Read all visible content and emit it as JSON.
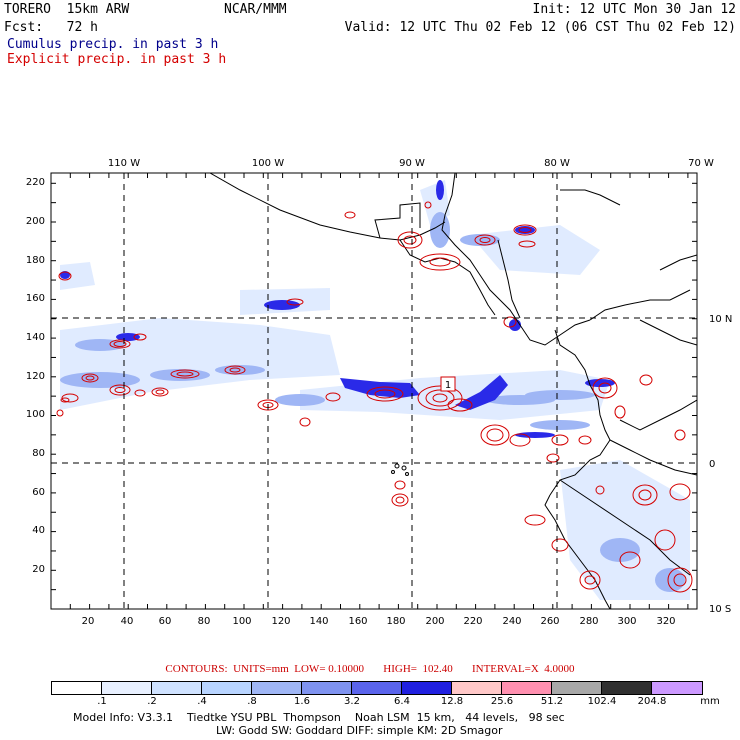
{
  "header": {
    "left1": "TORERO  15km ARW",
    "center1": "NCAR/MMM",
    "right1": "Init: 12 UTC Mon 30 Jan 12",
    "left2": "Fcst:   72 h",
    "right2": "Valid: 12 UTC Thu 02 Feb 12 (06 CST Thu 02 Feb 12)",
    "line3": "Cumulus precip. in past 3 h",
    "line4": "Explicit precip. in past 3 h",
    "color_blue": "#00008b",
    "color_red": "#d40000"
  },
  "map": {
    "top_lon_labels": [
      "110 W",
      "100 W",
      "90 W",
      "80 W",
      "70 W"
    ],
    "right_lat_labels": [
      "10 N",
      "0",
      "10 S"
    ],
    "x_ticks": [
      "20",
      "40",
      "60",
      "80",
      "100",
      "120",
      "140",
      "160",
      "180",
      "200",
      "220",
      "240",
      "260",
      "280",
      "300",
      "320"
    ],
    "y_ticks": [
      "220",
      "200",
      "180",
      "160",
      "140",
      "120",
      "100",
      "80",
      "60",
      "40",
      "20"
    ],
    "cell_label": "1"
  },
  "contours": {
    "text": "CONTOURS:  UNITS=mm  LOW= 0.10000       HIGH=  102.40       INTERVAL=X  4.0000"
  },
  "colorbar": {
    "colors": [
      "#ffffff",
      "#e8f0ff",
      "#cfe2ff",
      "#b8d4ff",
      "#9fb6f5",
      "#7f93f0",
      "#5a64ec",
      "#2020e0",
      "#ffc8c8",
      "#ff90b0",
      "#a8a8a8",
      "#303030",
      "#cc99ff"
    ],
    "labels": [
      ".1",
      ".2",
      ".4",
      ".8",
      "1.6",
      "3.2",
      "6.4",
      "12.8",
      "25.6",
      "51.2",
      "102.4",
      "204.8"
    ],
    "unit": "mm"
  },
  "footer": {
    "line1": "Model Info: V3.3.1    Tiedtke YSU PBL  Thompson    Noah LSM  15 km,   44 levels,   98 sec",
    "line2": "LW: Godd SW: Goddard DIFF: simple KM: 2D Smagor"
  }
}
